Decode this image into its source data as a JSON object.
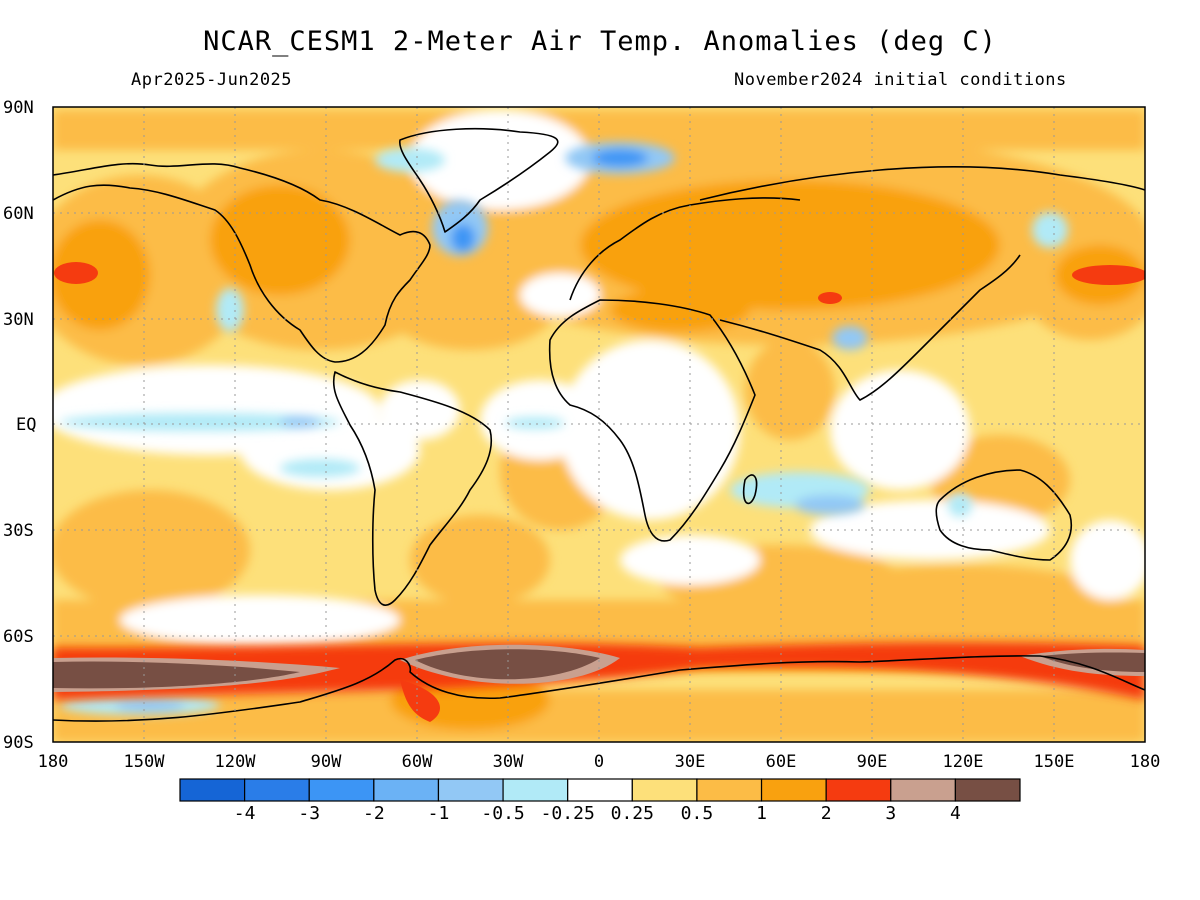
{
  "title": "NCAR_CESM1 2-Meter Air Temp. Anomalies (deg C)",
  "period": "Apr2025-Jun2025",
  "initial_conditions": "November2024 initial conditions",
  "lat_ticks": [
    "90N",
    "60N",
    "30N",
    "EQ",
    "30S",
    "60S",
    "90S"
  ],
  "lon_ticks": [
    "180",
    "150W",
    "120W",
    "90W",
    "60W",
    "30W",
    "0",
    "30E",
    "60E",
    "90E",
    "120E",
    "150E",
    "180"
  ],
  "colorbar": {
    "colors": [
      "#1565d6",
      "#2a7de8",
      "#3c95f5",
      "#6bb2f5",
      "#92c8f5",
      "#b1eaf7",
      "#ffffff",
      "#fde07a",
      "#fcbc46",
      "#f9a10f",
      "#f53b10",
      "#c9a08f",
      "#774f44"
    ],
    "labels": [
      "-4",
      "-3",
      "-2",
      "-1",
      "-0.5",
      "-0.25",
      "0.25",
      "0.5",
      "1",
      "2",
      "3",
      "4"
    ]
  }
}
